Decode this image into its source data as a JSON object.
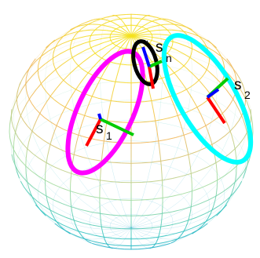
{
  "figure": {
    "sphere": {
      "colormap_top": "#f5e21c",
      "colormap_upper": "#f0b85a",
      "colormap_mid": "#a5dca0",
      "colormap_lower": "#37c6c0",
      "colormap_bottom": "#1aa3cf"
    },
    "labels": {
      "s1_base": "s",
      "s1_sub": "1",
      "s2_base": "s",
      "s2_sub": "2",
      "sn_base": "s",
      "sn_sub": "n"
    },
    "curves": [
      {
        "name": "s1-loop",
        "color": "#ff00ff"
      },
      {
        "name": "sn-loop",
        "color": "#000000"
      },
      {
        "name": "s2-loop",
        "color": "#00ffff"
      }
    ],
    "frame_colors": {
      "x_axis": "#ff0000",
      "y_axis": "#00cc00",
      "z_axis": "#0000ff"
    }
  }
}
